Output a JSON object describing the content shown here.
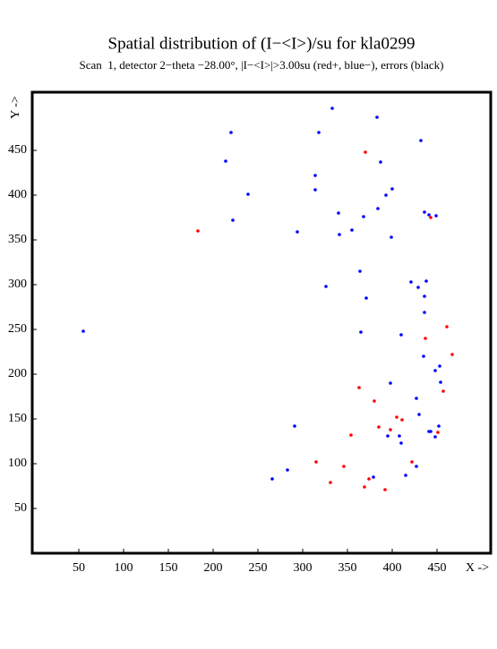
{
  "chart_data": {
    "type": "scatter",
    "title": "Spatial distribution of (I−<I>)/su for kla0299",
    "subtitle": "Scan  1, detector 2−theta −28.00°, |I−<I>|>3.00su (red+, blue−), errors (black)",
    "x_label": "X ->",
    "y_label": "Y ->",
    "xlim": [
      -2,
      510
    ],
    "ylim": [
      0,
      515
    ],
    "xticks": [
      50,
      100,
      150,
      200,
      250,
      300,
      350,
      400,
      450
    ],
    "yticks": [
      50,
      100,
      150,
      200,
      250,
      300,
      350,
      400,
      450
    ],
    "series": [
      {
        "color": "#0000ff",
        "x": [
          333,
          383,
          220,
          318,
          432,
          387,
          214,
          314,
          400,
          314,
          239,
          393,
          384,
          340,
          436,
          441,
          449,
          368,
          222,
          355,
          294,
          341,
          399,
          364,
          438,
          421,
          326,
          429,
          371,
          436,
          436,
          55,
          365,
          410,
          435,
          453,
          448,
          454,
          398,
          427,
          430,
          291,
          452,
          441,
          443,
          448,
          395,
          408,
          410,
          427,
          283,
          415,
          379,
          266
        ],
        "values": [
          497,
          487,
          470,
          470,
          461,
          437,
          438,
          422,
          407,
          406,
          401,
          400,
          385,
          380,
          381,
          378,
          377,
          376,
          372,
          361,
          359,
          356,
          353,
          315,
          304,
          303,
          298,
          297,
          285,
          287,
          269,
          248,
          247,
          244,
          220,
          209,
          204,
          191,
          190,
          173,
          155,
          142,
          142,
          136,
          136,
          130,
          131,
          131,
          123,
          97,
          93,
          87,
          85,
          83
        ]
      },
      {
        "color": "#ff0000",
        "x": [
          370,
          183,
          443,
          461,
          437,
          467,
          457,
          363,
          380,
          405,
          411,
          385,
          398,
          354,
          451,
          315,
          422,
          346,
          374,
          331,
          369,
          392
        ],
        "values": [
          448,
          360,
          375,
          253,
          240,
          222,
          181,
          185,
          170,
          152,
          149,
          141,
          138,
          132,
          135,
          102,
          102,
          97,
          83,
          79,
          74,
          71
        ]
      }
    ]
  }
}
